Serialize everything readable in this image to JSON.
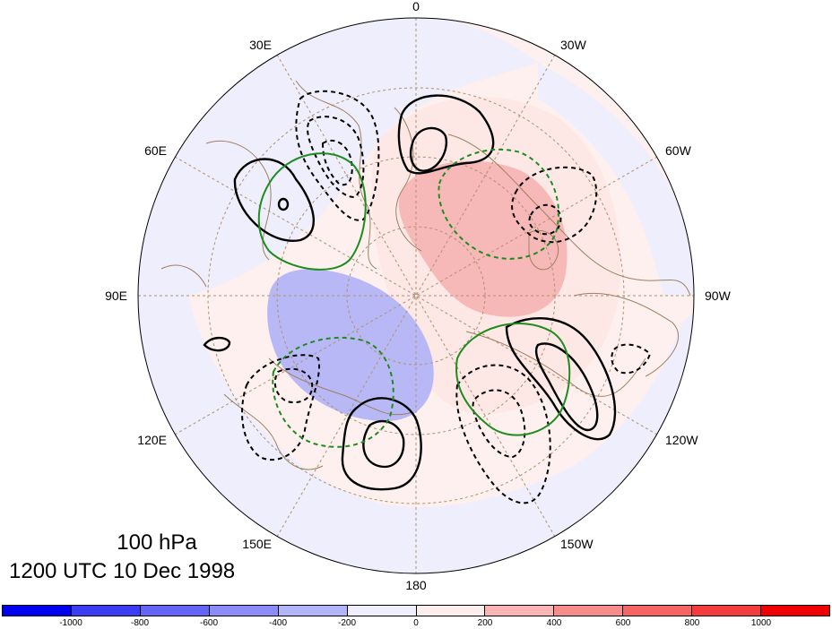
{
  "title": {
    "level": "100 hPa",
    "time": "1200 UTC 10 Dec 1998"
  },
  "map": {
    "projection": "polar stereographic (North Pole)",
    "longitude_labels": [
      "0",
      "30W",
      "60W",
      "90W",
      "120W",
      "150W",
      "180",
      "150E",
      "120E",
      "90E",
      "60E",
      "30E"
    ],
    "fill_colors": {
      "ocean_land_background": "#fdf0ee",
      "negative_light": "#eeeefd",
      "negative_strong": "#b8b8f7",
      "positive_light": "#fde8e6",
      "positive_strong": "#f7b8b8",
      "coastline": "#a08060",
      "grid": "#b09070",
      "contour_black": "#000000",
      "contour_green": "#1e8c1e"
    }
  },
  "colorbar": {
    "colors": [
      "#0000f0",
      "#3c3cf5",
      "#6464f7",
      "#8c8cf8",
      "#b4b4fa",
      "#eeeefd",
      "#fdeeee",
      "#fab4b4",
      "#f88c8c",
      "#f76464",
      "#f53c3c",
      "#f00000"
    ],
    "labels": [
      "-1000",
      "-800",
      "-600",
      "-400",
      "-200",
      "0",
      "200",
      "400",
      "600",
      "800",
      "1000"
    ]
  }
}
